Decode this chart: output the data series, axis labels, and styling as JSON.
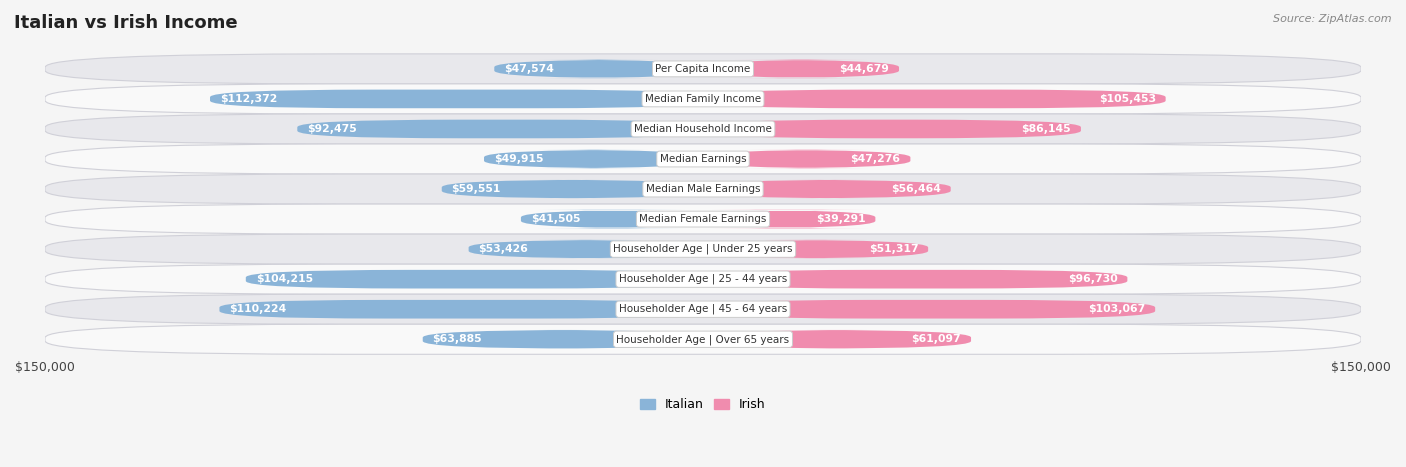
{
  "title": "Italian vs Irish Income",
  "source": "Source: ZipAtlas.com",
  "categories": [
    "Per Capita Income",
    "Median Family Income",
    "Median Household Income",
    "Median Earnings",
    "Median Male Earnings",
    "Median Female Earnings",
    "Householder Age | Under 25 years",
    "Householder Age | 25 - 44 years",
    "Householder Age | 45 - 64 years",
    "Householder Age | Over 65 years"
  ],
  "italian_values": [
    47574,
    112372,
    92475,
    49915,
    59551,
    41505,
    53426,
    104215,
    110224,
    63885
  ],
  "irish_values": [
    44679,
    105453,
    86145,
    47276,
    56464,
    39291,
    51317,
    96730,
    103067,
    61097
  ],
  "italian_labels": [
    "$47,574",
    "$112,372",
    "$92,475",
    "$49,915",
    "$59,551",
    "$41,505",
    "$53,426",
    "$104,215",
    "$110,224",
    "$63,885"
  ],
  "irish_labels": [
    "$44,679",
    "$105,453",
    "$86,145",
    "$47,276",
    "$56,464",
    "$39,291",
    "$51,317",
    "$96,730",
    "$103,067",
    "$61,097"
  ],
  "italian_color": "#8ab4d8",
  "irish_color": "#f08cae",
  "max_value": 150000,
  "bar_height": 0.62,
  "background_color": "#f5f5f5",
  "row_bg_light": "#f9f9f9",
  "row_bg_dark": "#e8e8ec",
  "row_border": "#d0d0d8"
}
